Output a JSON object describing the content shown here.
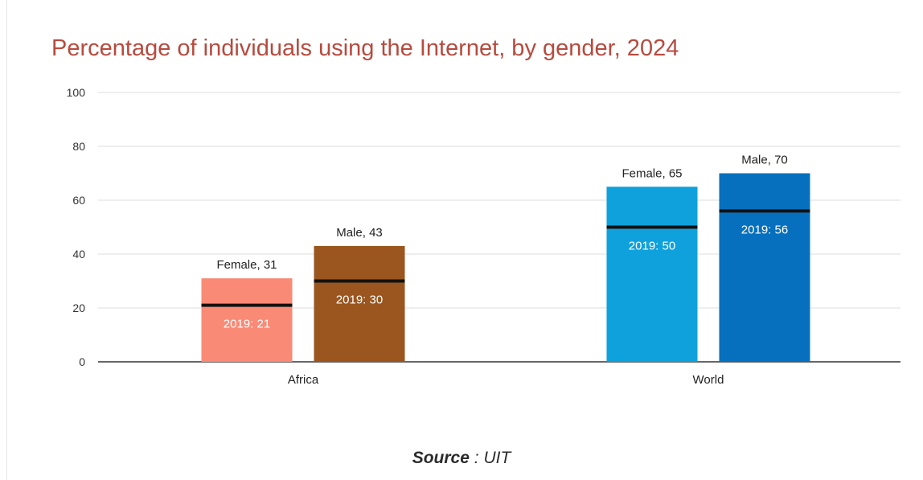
{
  "chart_data": {
    "type": "bar",
    "title": "Percentage of individuals using the Internet, by gender, 2024",
    "categories": [
      "Africa",
      "World"
    ],
    "series": [
      {
        "name": "Female",
        "values": [
          31,
          65
        ],
        "labels": [
          "Female, 31",
          "Female, 65"
        ],
        "baseline_values": [
          21,
          50
        ],
        "baseline_labels": [
          "2019: 21",
          "2019: 50"
        ],
        "colors": [
          "#f98a76",
          "#0ea1dc"
        ]
      },
      {
        "name": "Male",
        "values": [
          43,
          70
        ],
        "labels": [
          "Male, 43",
          "Male, 70"
        ],
        "baseline_values": [
          30,
          56
        ],
        "baseline_labels": [
          "2019: 30",
          "2019: 56"
        ],
        "colors": [
          "#9a561e",
          "#0670be"
        ]
      }
    ],
    "yticks": [
      "0",
      "20",
      "40",
      "60",
      "80",
      "100"
    ],
    "ylim": [
      0,
      100
    ],
    "grid": true,
    "legend": "none"
  },
  "source": {
    "key": "Source",
    "separator": " : ",
    "value": "UIT"
  }
}
